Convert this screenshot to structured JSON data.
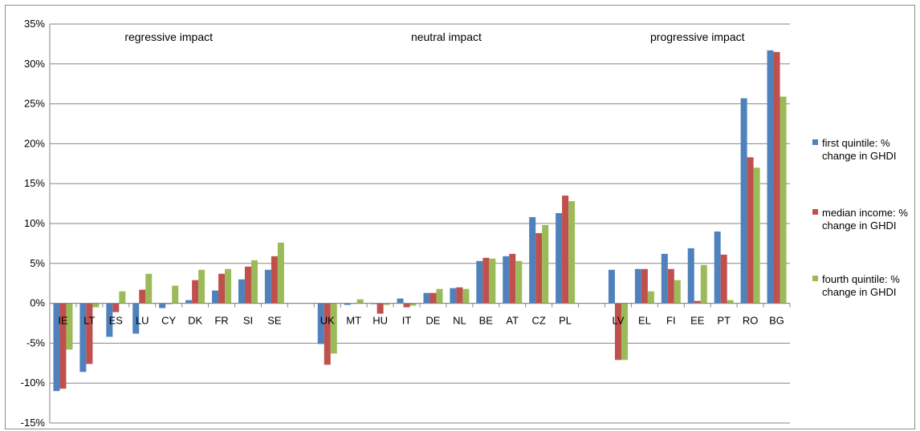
{
  "chart_data": {
    "type": "bar",
    "categories": [
      "IE",
      "LT",
      "ES",
      "LU",
      "CY",
      "DK",
      "FR",
      "SI",
      "SE",
      "UK",
      "MT",
      "HU",
      "IT",
      "DE",
      "NL",
      "BE",
      "AT",
      "CZ",
      "PL",
      "LV",
      "EL",
      "FI",
      "EE",
      "PT",
      "RO",
      "BG"
    ],
    "series": [
      {
        "name": "first quintile: % change in GHDI",
        "color": "#4f81bd",
        "values": [
          -11.0,
          -8.6,
          -4.2,
          -3.8,
          -0.6,
          0.4,
          1.6,
          3.0,
          4.2,
          -5.1,
          -0.2,
          -0.1,
          0.6,
          1.3,
          1.9,
          5.3,
          5.9,
          10.8,
          11.3,
          4.2,
          4.3,
          6.2,
          6.9,
          9.0,
          25.7,
          31.7
        ]
      },
      {
        "name": "median income: % change in GHDI",
        "color": "#c0504d",
        "values": [
          -10.7,
          -7.6,
          -1.1,
          1.7,
          -0.1,
          2.9,
          3.7,
          4.6,
          5.9,
          -7.7,
          0.0,
          -1.3,
          -0.5,
          1.3,
          2.0,
          5.7,
          6.2,
          8.8,
          13.5,
          -7.1,
          4.3,
          4.3,
          0.3,
          6.1,
          18.3,
          31.5
        ]
      },
      {
        "name": "fourth quintile: % change in GHDI",
        "color": "#9bbb59",
        "values": [
          -5.8,
          -0.5,
          1.5,
          3.7,
          2.2,
          4.2,
          4.3,
          5.4,
          7.6,
          -6.3,
          0.5,
          -0.2,
          -0.3,
          1.8,
          1.8,
          5.6,
          5.3,
          9.8,
          12.8,
          -7.1,
          1.5,
          2.9,
          4.8,
          0.4,
          17.0,
          25.9
        ]
      }
    ],
    "groups": [
      {
        "label": "regressive impact",
        "start": 0,
        "end": 8
      },
      {
        "label": "neutral impact",
        "start": 9,
        "end": 18
      },
      {
        "label": "progressive impact",
        "start": 19,
        "end": 25
      }
    ],
    "ylim": [
      -15,
      35
    ],
    "yticks": [
      35,
      30,
      25,
      20,
      15,
      10,
      5,
      0,
      -5,
      -10,
      -15
    ],
    "ytick_labels": [
      "35%",
      "30%",
      "25%",
      "20%",
      "15%",
      "10%",
      "5%",
      "0%",
      "-5%",
      "-10%",
      "-15%"
    ],
    "grid": true,
    "legend_position": "right",
    "legend_lines": [
      [
        "first quintile: %",
        "change in GHDI"
      ],
      [
        "median income: %",
        "change in GHDI"
      ],
      [
        "fourth quintile: %",
        "change in GHDI"
      ]
    ]
  }
}
